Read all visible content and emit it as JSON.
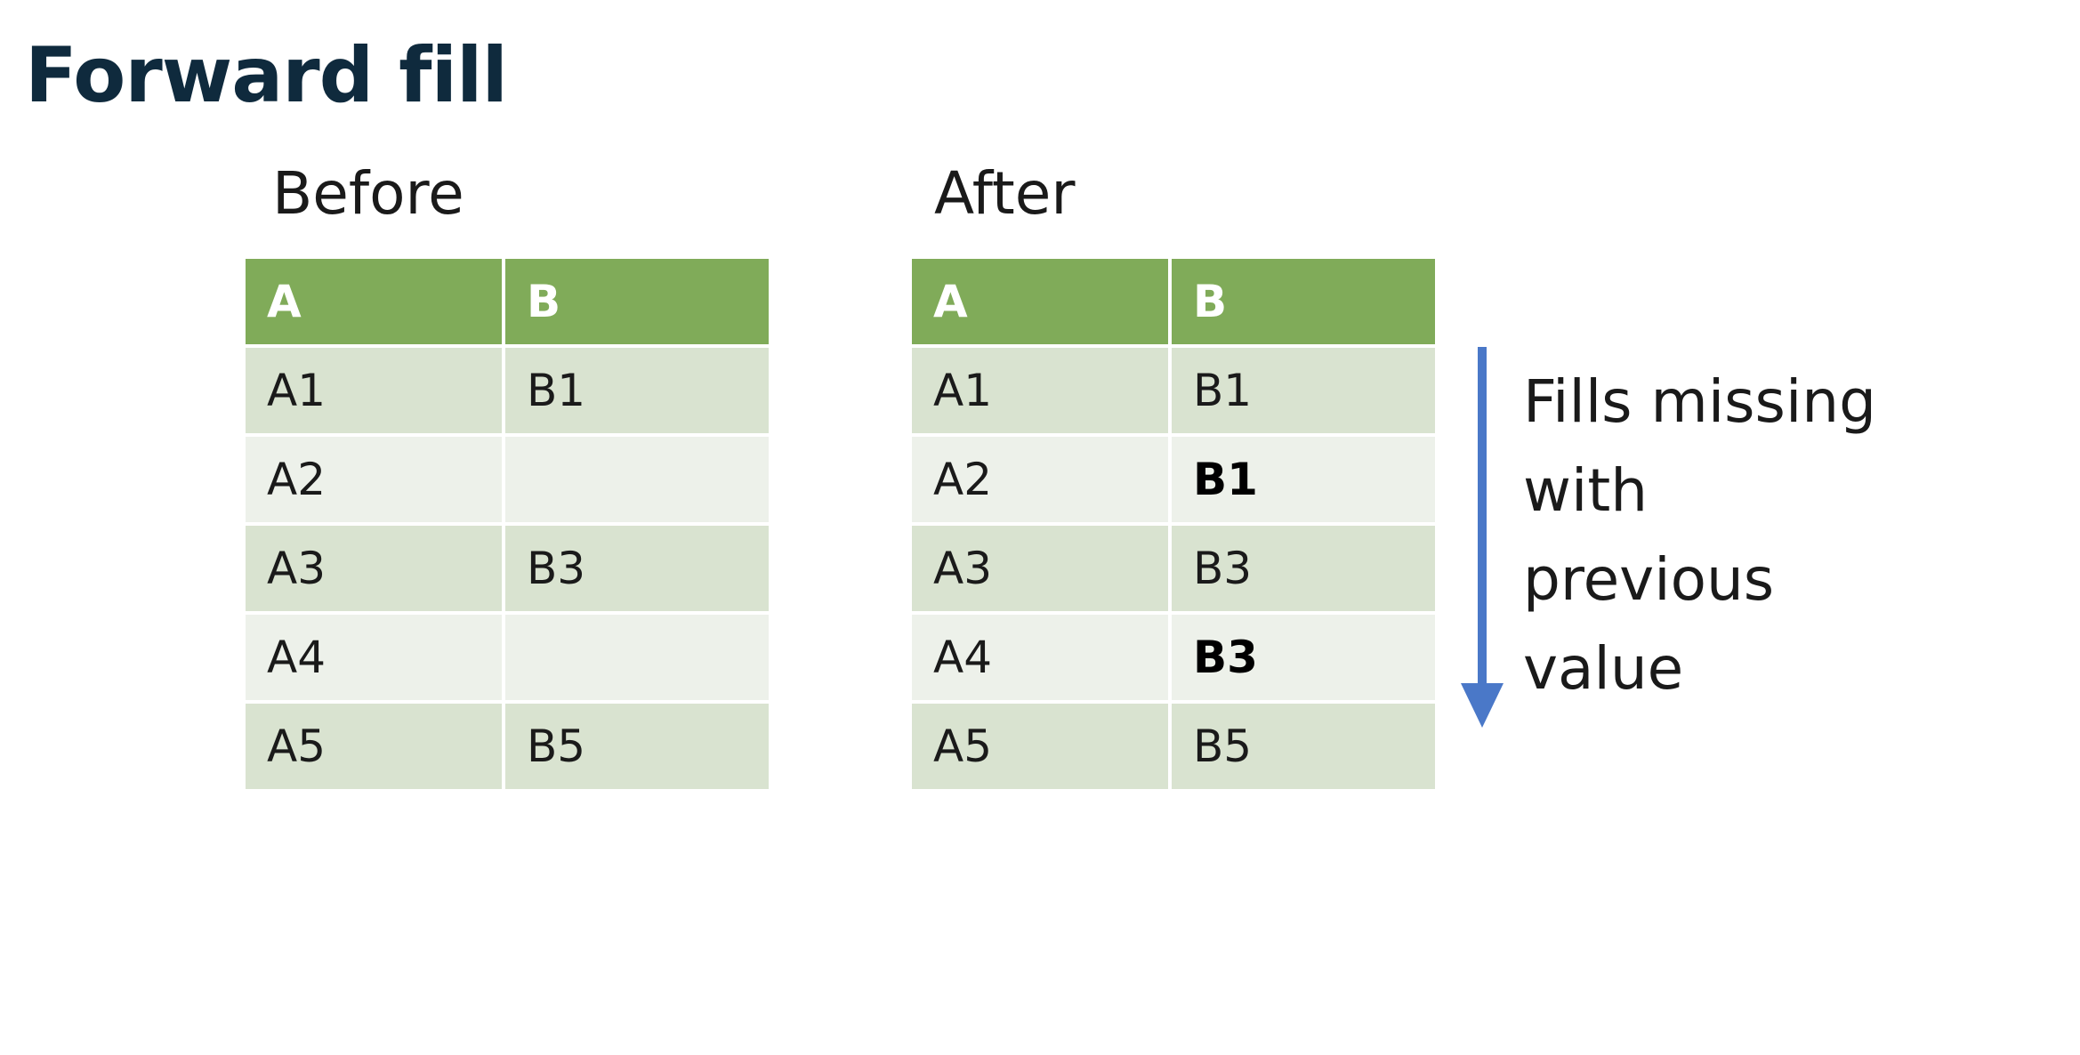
{
  "title": "Forward fill",
  "before": {
    "caption": "Before",
    "headers": [
      "A",
      "B"
    ],
    "rows": [
      [
        "A1",
        "B1"
      ],
      [
        "A2",
        ""
      ],
      [
        "A3",
        "B3"
      ],
      [
        "A4",
        ""
      ],
      [
        "A5",
        "B5"
      ]
    ]
  },
  "after": {
    "caption": "After",
    "headers": [
      "A",
      "B"
    ],
    "rows": [
      [
        "A1",
        "B1"
      ],
      [
        "A2",
        "B1"
      ],
      [
        "A3",
        "B3"
      ],
      [
        "A4",
        "B3"
      ],
      [
        "A5",
        "B5"
      ]
    ]
  },
  "note": {
    "lines": [
      "Fills missing",
      "with",
      "previous",
      "value"
    ]
  },
  "colors": {
    "title": "#0f2a3d",
    "header_bg": "#80ab59",
    "row_odd_bg": "#d9e3d0",
    "row_even_bg": "#edf1ea",
    "arrow": "#4a78c8"
  },
  "icons": {
    "arrow": "down-arrow-icon"
  }
}
